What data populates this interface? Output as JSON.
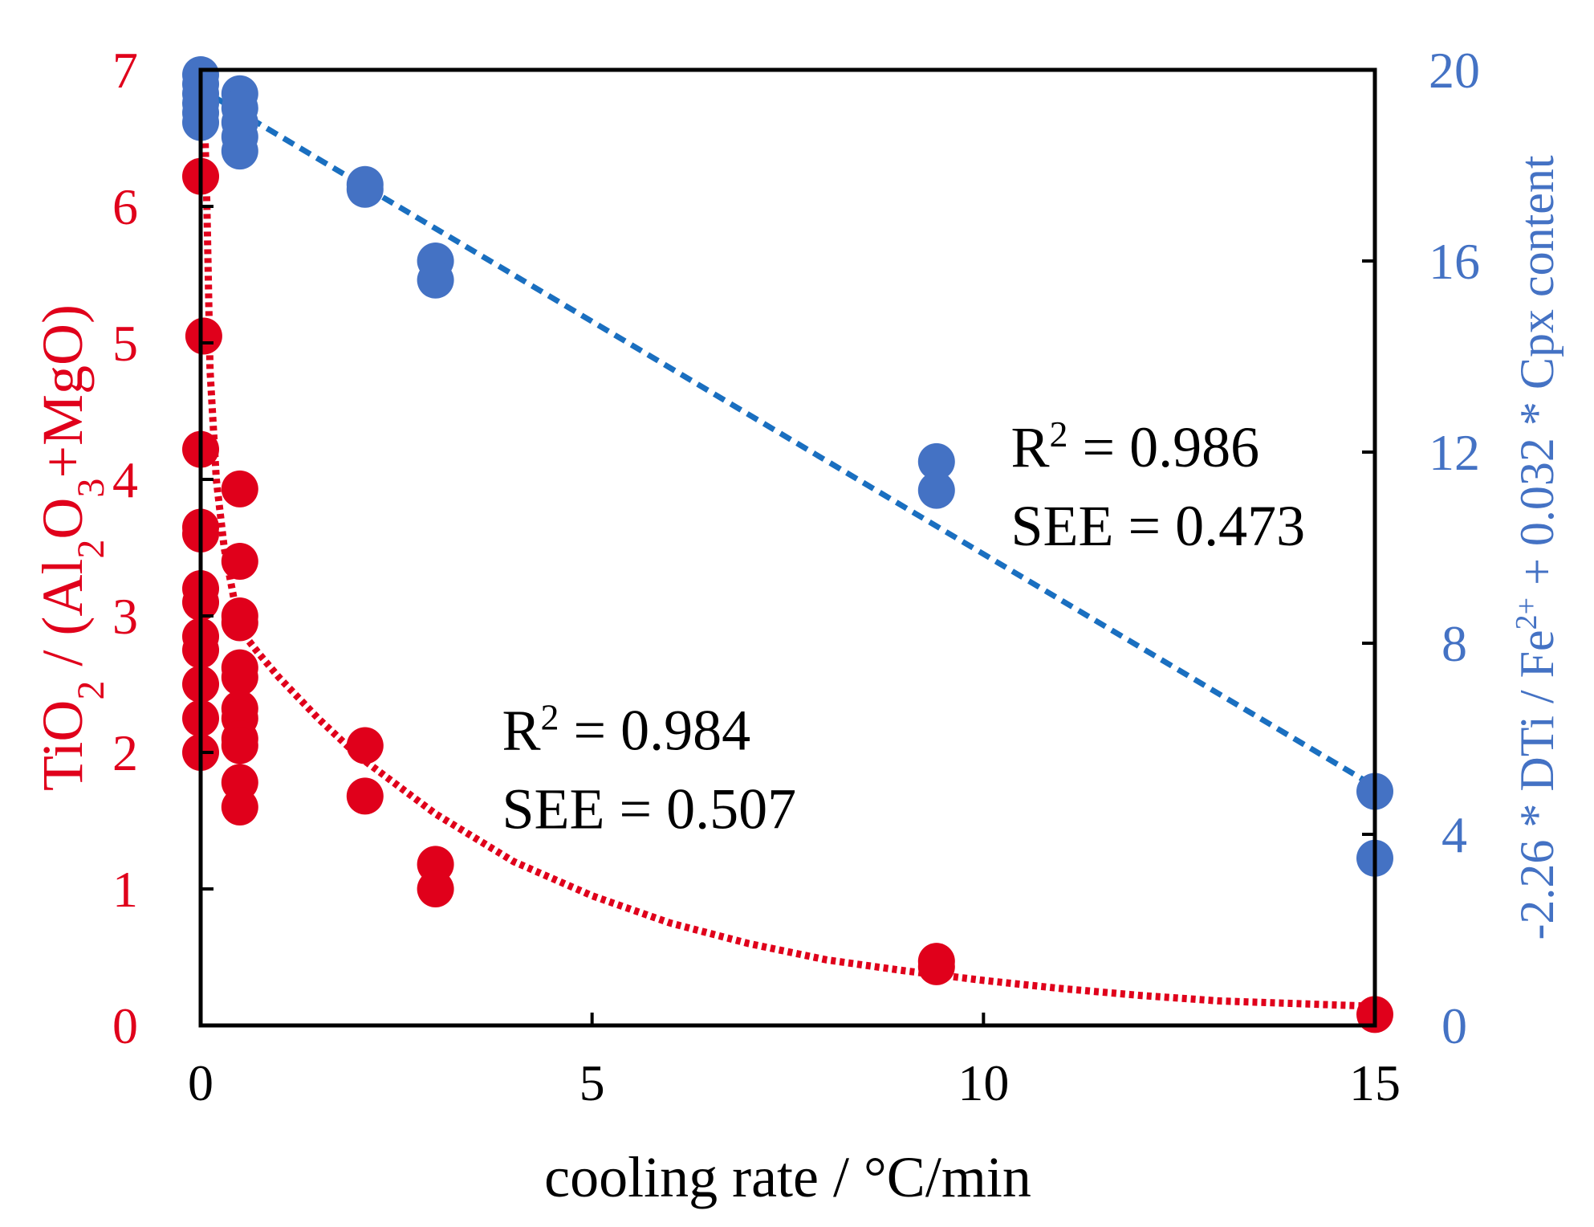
{
  "chart_data": {
    "type": "scatter",
    "xlabel": "cooling rate / °C/min",
    "ylabel_left": {
      "parts": [
        "TiO",
        "2",
        " / (Al",
        "2",
        "O",
        "3",
        "+MgO)"
      ]
    },
    "ylabel_right": {
      "parts": [
        "-2.26 * DTi / Fe",
        "2+",
        " + 0.032 * Cpx content"
      ]
    },
    "xlim": [
      0,
      15
    ],
    "ylim_left": [
      0,
      7
    ],
    "ylim_right": [
      0,
      20
    ],
    "x_ticks": [
      "0",
      "5",
      "10",
      "15"
    ],
    "y_ticks_left": [
      "0",
      "1",
      "2",
      "3",
      "4",
      "5",
      "6",
      "7"
    ],
    "y_ticks_right": [
      "0",
      "4",
      "8",
      "12",
      "16",
      "20"
    ],
    "grid": false,
    "colors": {
      "left": "#e0001b",
      "right": "#4472c4",
      "right_trend": "#1a6fc0",
      "axis": "#000000"
    },
    "series": [
      {
        "axis": "left",
        "color": "#e0001b",
        "marker": "circle",
        "trendline": "exponential, dotted",
        "points": [
          [
            0,
            6.22
          ],
          [
            0.04,
            5.05
          ],
          [
            0,
            4.22
          ],
          [
            0,
            3.65
          ],
          [
            0,
            3.6
          ],
          [
            0,
            3.2
          ],
          [
            0,
            3.1
          ],
          [
            0,
            2.85
          ],
          [
            0,
            2.75
          ],
          [
            0,
            2.5
          ],
          [
            0,
            2.25
          ],
          [
            0,
            2.0
          ],
          [
            0.5,
            3.93
          ],
          [
            0.5,
            3.4
          ],
          [
            0.5,
            3.0
          ],
          [
            0.5,
            2.95
          ],
          [
            0.5,
            2.62
          ],
          [
            0.5,
            2.55
          ],
          [
            0.5,
            2.32
          ],
          [
            0.5,
            2.25
          ],
          [
            0.5,
            2.1
          ],
          [
            0.5,
            2.05
          ],
          [
            0.5,
            1.78
          ],
          [
            0.5,
            1.6
          ],
          [
            2.1,
            2.05
          ],
          [
            2.1,
            1.68
          ],
          [
            3,
            1.18
          ],
          [
            3,
            1.0
          ],
          [
            9.4,
            0.47
          ],
          [
            9.4,
            0.43
          ],
          [
            15,
            0.08
          ]
        ],
        "trend_samples": [
          [
            0.04,
            6.85
          ],
          [
            0.08,
            6.0
          ],
          [
            0.12,
            4.8
          ],
          [
            0.2,
            4.0
          ],
          [
            0.3,
            3.5
          ],
          [
            0.5,
            2.9
          ],
          [
            0.75,
            2.72
          ],
          [
            1.0,
            2.55
          ],
          [
            1.5,
            2.25
          ],
          [
            2.0,
            1.98
          ],
          [
            3,
            1.55
          ],
          [
            4,
            1.2
          ],
          [
            5,
            0.95
          ],
          [
            6,
            0.75
          ],
          [
            7,
            0.6
          ],
          [
            8,
            0.48
          ],
          [
            9,
            0.4
          ],
          [
            10,
            0.33
          ],
          [
            11,
            0.27
          ],
          [
            12,
            0.22
          ],
          [
            13,
            0.18
          ],
          [
            14,
            0.16
          ],
          [
            15,
            0.14
          ]
        ]
      },
      {
        "axis": "right",
        "color": "#4472c4",
        "marker": "circle",
        "trendline": "linear, dashed",
        "points": [
          [
            0,
            19.9
          ],
          [
            0,
            19.7
          ],
          [
            0,
            19.5
          ],
          [
            0,
            19.3
          ],
          [
            0,
            19.1
          ],
          [
            0,
            18.9
          ],
          [
            0.5,
            19.5
          ],
          [
            0.5,
            19.2
          ],
          [
            0.5,
            18.9
          ],
          [
            0.5,
            18.6
          ],
          [
            0.5,
            18.3
          ],
          [
            2.1,
            17.6
          ],
          [
            2.1,
            17.5
          ],
          [
            3,
            16.0
          ],
          [
            3,
            15.6
          ],
          [
            9.4,
            11.8
          ],
          [
            9.4,
            11.2
          ],
          [
            15,
            4.9
          ],
          [
            15,
            3.5
          ]
        ],
        "trend_samples": [
          [
            0,
            19.6
          ],
          [
            15,
            5.0
          ]
        ]
      }
    ],
    "annotations": [
      {
        "axis": "right",
        "at": [
          10.35,
          11.7
        ],
        "lines": [
          {
            "prefix": "R",
            "sup": "2",
            "rest": " = 0.986"
          },
          {
            "prefix": "SEE = 0.473",
            "sup": "",
            "rest": ""
          }
        ]
      },
      {
        "axis": "left",
        "at": [
          3.85,
          2.02
        ],
        "lines": [
          {
            "prefix": "R",
            "sup": "2",
            "rest": " = 0.984"
          },
          {
            "prefix": "SEE = 0.507",
            "sup": "",
            "rest": ""
          }
        ]
      }
    ]
  }
}
